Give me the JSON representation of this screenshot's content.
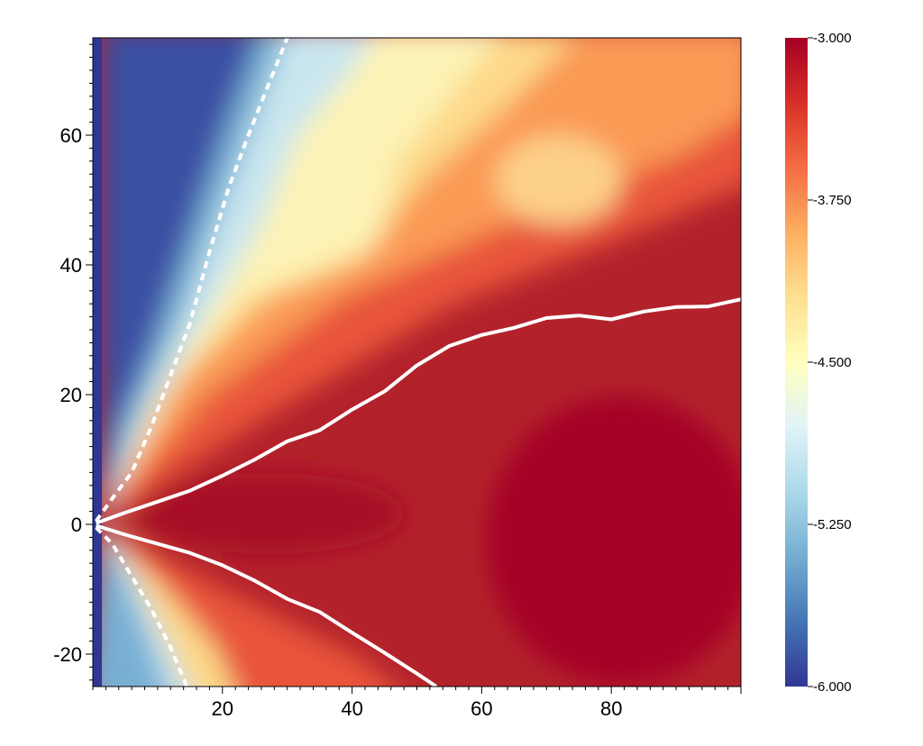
{
  "chart_data": {
    "type": "heatmap",
    "title": "",
    "xlabel": "",
    "ylabel": "",
    "xlim": [
      0,
      100
    ],
    "ylim": [
      -25,
      75
    ],
    "x_ticks": [
      20,
      40,
      60,
      80
    ],
    "y_ticks": [
      -20,
      0,
      20,
      40,
      60
    ],
    "x_tick_labels": [
      "20",
      "40",
      "60",
      "80"
    ],
    "y_tick_labels": [
      "-20",
      "0",
      "20",
      "40",
      "60"
    ],
    "colorbar": {
      "range": [
        -6.0,
        -3.0
      ],
      "ticks": [
        -3.0,
        -3.75,
        -4.5,
        -5.25,
        -6.0
      ],
      "tick_labels": [
        "-3.000",
        "-3.750",
        "-4.500",
        "-5.250",
        "-6.000"
      ],
      "colormap": "RdYlBu reversed",
      "colors": [
        "#313695",
        "#4575b4",
        "#74add1",
        "#abd9e9",
        "#e0f3f8",
        "#ffffbf",
        "#fee090",
        "#fdae61",
        "#f46d43",
        "#d73027",
        "#a50026"
      ]
    },
    "grid": false,
    "field_description": "log-scale field, dark blue (-6) near polar axis, red (-3) in equatorial wedge",
    "contours": [
      {
        "style": "solid",
        "color": "#ffffff",
        "x": [
          0.5,
          5,
          10,
          15,
          20,
          25,
          30,
          35,
          40,
          45,
          50,
          55,
          60,
          65,
          70,
          75,
          80,
          85,
          90,
          95,
          100
        ],
        "y": [
          0.2,
          1.8,
          3.5,
          5.2,
          7.5,
          10.0,
          12.8,
          14.5,
          17.7,
          20.5,
          24.5,
          27.5,
          29.2,
          30.3,
          31.8,
          32.2,
          31.6,
          32.8,
          33.5,
          33.6,
          34.7
        ]
      },
      {
        "style": "solid",
        "color": "#ffffff",
        "x": [
          0.5,
          5,
          10,
          15,
          20,
          25,
          30,
          35,
          40,
          45,
          50,
          53
        ],
        "y": [
          -0.2,
          -1.6,
          -3.0,
          -4.4,
          -6.3,
          -8.7,
          -11.5,
          -13.5,
          -16.7,
          -19.8,
          -23.0,
          -25
        ]
      },
      {
        "style": "dashed",
        "color": "#ffffff",
        "x": [
          0.5,
          3,
          6,
          9,
          12,
          15,
          18,
          21,
          24,
          26,
          28,
          30
        ],
        "y": [
          0.5,
          4,
          8,
          15,
          23,
          31,
          42,
          52,
          60,
          65,
          70,
          75
        ]
      },
      {
        "style": "dashed",
        "color": "#ffffff",
        "x": [
          0.5,
          3,
          6,
          9,
          12,
          14.5
        ],
        "y": [
          -0.5,
          -3,
          -8,
          -13,
          -19,
          -25
        ]
      }
    ]
  }
}
